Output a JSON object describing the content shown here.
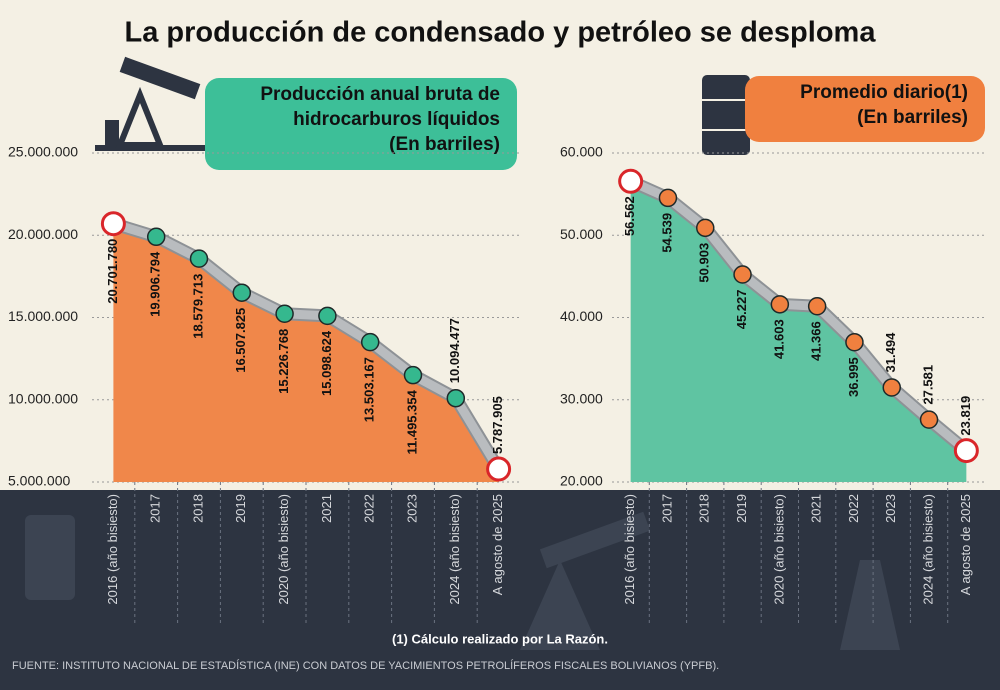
{
  "title": "La producción de condensado y petróleo se desploma",
  "chart_data": [
    {
      "type": "area",
      "subtitle": [
        "Producción anual bruta de",
        "hidrocarburos líquidos",
        "(En barriles)"
      ],
      "header_color": "#3dbf98",
      "categories": [
        "2016 (año bisiesto)",
        "2017",
        "2018",
        "2019",
        "2020 (año bisiesto)",
        "2021",
        "2022",
        "2023",
        "2024 (año bisiesto)",
        "A agosto de 2025"
      ],
      "values": [
        20701780,
        19906794,
        18579713,
        16507825,
        15226768,
        15098624,
        13503167,
        11495354,
        10094477,
        5787905
      ],
      "value_labels": [
        "20.701.780",
        "19.906.794",
        "18.579.713",
        "16.507.825",
        "15.226.768",
        "15.098.624",
        "13.503.167",
        "11.495.354",
        "10.094.477",
        "5.787.905"
      ],
      "color": "#f0874a",
      "marker_color": "#35b88e",
      "line_color": "#b9bcbf",
      "ylim": [
        5000000,
        25000000
      ],
      "yticks": [
        {
          "value": 5000000,
          "label": "5.000.000"
        },
        {
          "value": 10000000,
          "label": "10.000.000"
        },
        {
          "value": 15000000,
          "label": "15.000.000"
        },
        {
          "value": 20000000,
          "label": "20.000.000"
        },
        {
          "value": 25000000,
          "label": "25.000.000"
        }
      ],
      "grid": true
    },
    {
      "type": "area",
      "subtitle": [
        "Promedio diario(1)",
        "(En barriles)"
      ],
      "header_color": "#f0803f",
      "categories": [
        "2016 (año bisiesto)",
        "2017",
        "2018",
        "2019",
        "2020 (año bisiesto)",
        "2021",
        "2022",
        "2023",
        "2024 (año bisiesto)",
        "A agosto de 2025"
      ],
      "values": [
        56562,
        54539,
        50903,
        45227,
        41603,
        41366,
        36995,
        31494,
        27581,
        23819
      ],
      "value_labels": [
        "56.562",
        "54.539",
        "50.903",
        "45.227",
        "41.603",
        "41.366",
        "36.995",
        "31.494",
        "27.581",
        "23.819"
      ],
      "color": "#5fc4a2",
      "marker_color": "#f0803f",
      "line_color": "#b9bcbf",
      "ylim": [
        20000,
        60000
      ],
      "yticks": [
        {
          "value": 20000,
          "label": "20.000"
        },
        {
          "value": 30000,
          "label": "30.000"
        },
        {
          "value": 40000,
          "label": "40.000"
        },
        {
          "value": 50000,
          "label": "50.000"
        },
        {
          "value": 60000,
          "label": "60.000"
        }
      ],
      "grid": true
    }
  ],
  "footnote": "(1) Cálculo realizado por La Razón.",
  "source": "FUENTE: INSTITUTO NACIONAL DE ESTADÍSTICA (INE) CON DATOS DE YACIMIENTOS PETROLÍFEROS FISCALES BOLIVIANOS (YPFB)."
}
